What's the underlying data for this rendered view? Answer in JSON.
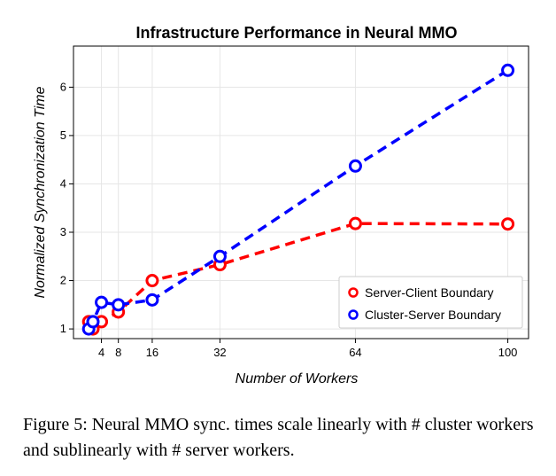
{
  "chart_data": {
    "type": "line",
    "title": "Infrastructure Performance in Neural MMO",
    "xlabel": "Number of Workers",
    "ylabel": "Normalized Synchronization Time",
    "xlim": [
      -2.6,
      104.9
    ],
    "ylim": [
      0.8,
      6.85
    ],
    "xticks": [
      4,
      8,
      16,
      32,
      64,
      100
    ],
    "yticks": [
      1,
      2,
      3,
      4,
      5,
      6
    ],
    "grid": true,
    "legend_position": "bottom-right",
    "series": [
      {
        "name": "Server-Client Boundary",
        "color": "#ff0000",
        "x": [
          1,
          2,
          4,
          8,
          16,
          32,
          64,
          100
        ],
        "y": [
          1.15,
          1.0,
          1.15,
          1.35,
          2.0,
          2.33,
          3.18,
          3.17
        ]
      },
      {
        "name": "Cluster-Server Boundary",
        "color": "#0000ff",
        "x": [
          1,
          2,
          4,
          8,
          16,
          32,
          64,
          100
        ],
        "y": [
          1.0,
          1.15,
          1.55,
          1.5,
          1.6,
          2.5,
          4.37,
          6.35
        ]
      }
    ]
  },
  "caption": "Figure 5: Neural MMO sync. times scale linearly with # cluster workers and sublinearly with # server workers."
}
